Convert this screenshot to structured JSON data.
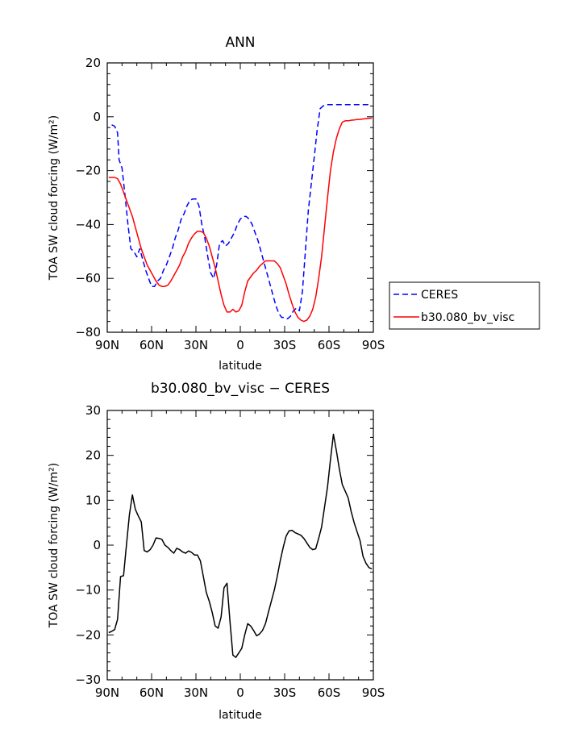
{
  "chart_data": [
    {
      "type": "line",
      "title": "ANN",
      "xlabel": "latitude",
      "ylabel": "TOA SW cloud forcing (W/m²)",
      "xlim": [
        90,
        -90
      ],
      "ylim": [
        -80,
        20
      ],
      "xticks": [
        {
          "value": 90,
          "label": "90N"
        },
        {
          "value": 60,
          "label": "60N"
        },
        {
          "value": 30,
          "label": "30N"
        },
        {
          "value": 0,
          "label": "0"
        },
        {
          "value": -30,
          "label": "30S"
        },
        {
          "value": -60,
          "label": "60S"
        },
        {
          "value": -90,
          "label": "90S"
        }
      ],
      "yticks": [
        -80,
        -60,
        -40,
        -20,
        0,
        20
      ],
      "legend": {
        "placement": "right-outside"
      },
      "series": [
        {
          "name": "CERES",
          "color": "#0000ff",
          "dash": "dashed",
          "x": [
            87,
            85,
            83,
            82,
            80,
            78,
            76,
            74,
            72,
            70,
            68,
            66,
            64,
            62,
            60,
            58,
            56,
            54,
            52,
            50,
            48,
            46,
            44,
            42,
            40,
            38,
            36,
            34,
            32,
            30,
            28,
            26,
            24,
            22,
            20,
            18,
            16,
            14,
            12,
            10,
            8,
            6,
            4,
            2,
            0,
            -2,
            -4,
            -6,
            -8,
            -10,
            -12,
            -14,
            -16,
            -18,
            -20,
            -22,
            -24,
            -26,
            -28,
            -30,
            -32,
            -34,
            -36,
            -38,
            -40,
            -42,
            -44,
            -46,
            -48,
            -50,
            -52,
            -54,
            -56,
            -58,
            -60,
            -62,
            -64,
            -66,
            -68,
            -70,
            -72,
            -74,
            -76,
            -78,
            -80,
            -82,
            -84,
            -86,
            -88
          ],
          "y": [
            -3,
            -3.5,
            -6,
            -16,
            -19,
            -29,
            -40,
            -49,
            -50,
            -52,
            -49,
            -53,
            -57,
            -60,
            -63,
            -63,
            -61,
            -60,
            -57,
            -55,
            -52,
            -49,
            -45,
            -42,
            -38,
            -36,
            -33,
            -31,
            -30.5,
            -30.5,
            -33,
            -40,
            -45,
            -52,
            -58,
            -60,
            -55,
            -47,
            -46,
            -48,
            -47,
            -45,
            -43,
            -40,
            -38,
            -37,
            -37,
            -38,
            -40,
            -43,
            -46,
            -50,
            -54,
            -58,
            -62,
            -66,
            -70,
            -73,
            -74.5,
            -74.5,
            -75,
            -74,
            -72,
            -71,
            -72,
            -65,
            -50,
            -35,
            -25,
            -15,
            -5,
            3,
            4,
            4.5,
            4.5,
            4.5,
            4.5,
            4.5,
            4.5,
            4.5,
            4.5,
            4.5,
            4.5,
            4.5,
            4.5,
            4.5,
            4.5,
            4.5,
            4.5
          ]
        },
        {
          "name": "b30.080_bv_visc",
          "color": "#ff0000",
          "dash": "solid",
          "x": [
            89,
            87,
            85,
            83,
            81,
            79,
            77,
            75,
            73,
            71,
            69,
            67,
            65,
            63,
            61,
            59,
            57,
            55,
            53,
            51,
            49,
            47,
            45,
            43,
            41,
            39,
            37,
            35,
            33,
            31,
            29,
            27,
            25,
            23,
            21,
            19,
            17,
            15,
            13,
            11,
            9,
            7,
            5,
            3,
            1,
            -1,
            -3,
            -5,
            -7,
            -9,
            -11,
            -13,
            -15,
            -17,
            -19,
            -21,
            -23,
            -25,
            -27,
            -29,
            -31,
            -33,
            -35,
            -37,
            -39,
            -41,
            -43,
            -45,
            -47,
            -49,
            -51,
            -53,
            -55,
            -57,
            -59,
            -61,
            -63,
            -65,
            -67,
            -69,
            -71,
            -73,
            -75,
            -77,
            -79,
            -81,
            -83,
            -85,
            -87,
            -89
          ],
          "y": [
            -22.5,
            -22.5,
            -22.5,
            -23,
            -25,
            -28,
            -31,
            -34,
            -37,
            -41,
            -45,
            -49,
            -52,
            -55,
            -57,
            -59,
            -61,
            -62.5,
            -63,
            -63,
            -62.5,
            -61,
            -59,
            -57,
            -55,
            -52,
            -50,
            -47,
            -45,
            -43.5,
            -42.5,
            -42.5,
            -43,
            -45,
            -48,
            -52,
            -56,
            -61,
            -66,
            -70,
            -72.5,
            -72.5,
            -71.5,
            -72.5,
            -72,
            -70,
            -65,
            -61,
            -59.5,
            -58,
            -57,
            -55.5,
            -54.5,
            -53.5,
            -53.5,
            -53.5,
            -53.5,
            -54.5,
            -56,
            -59,
            -62,
            -66,
            -69.5,
            -72.5,
            -74.5,
            -75.5,
            -76,
            -75.5,
            -74,
            -71.5,
            -67,
            -60,
            -52,
            -41,
            -30,
            -20,
            -13,
            -8,
            -4.5,
            -2,
            -1.5,
            -1.5,
            -1.3,
            -1.2,
            -1,
            -1,
            -0.8,
            -0.7,
            -0.6,
            -0.5
          ]
        }
      ]
    },
    {
      "type": "line",
      "title": "b30.080_bv_visc  −  CERES",
      "xlabel": "latitude",
      "ylabel": "TOA SW cloud forcing (W/m²)",
      "xlim": [
        90,
        -90
      ],
      "ylim": [
        -30,
        30
      ],
      "xticks": [
        {
          "value": 90,
          "label": "90N"
        },
        {
          "value": 60,
          "label": "60N"
        },
        {
          "value": 30,
          "label": "30N"
        },
        {
          "value": 0,
          "label": "0"
        },
        {
          "value": -30,
          "label": "30S"
        },
        {
          "value": -60,
          "label": "60S"
        },
        {
          "value": -90,
          "label": "90S"
        }
      ],
      "yticks": [
        -30,
        -20,
        -10,
        0,
        10,
        20,
        30
      ],
      "series": [
        {
          "name": "",
          "color": "#000000",
          "dash": "solid",
          "x": [
            89,
            87,
            85,
            83,
            81,
            79,
            77,
            75,
            73,
            71,
            69,
            67,
            65,
            63,
            61,
            59,
            57,
            55,
            53,
            51,
            49,
            47,
            45,
            43,
            41,
            39,
            37,
            35,
            33,
            31,
            29,
            27,
            25,
            23,
            21,
            19,
            17,
            15,
            13,
            11,
            9,
            7,
            5,
            3,
            1,
            -1,
            -3,
            -5,
            -7,
            -9,
            -11,
            -13,
            -15,
            -17,
            -19,
            -21,
            -23,
            -25,
            -27,
            -29,
            -31,
            -33,
            -35,
            -37,
            -39,
            -41,
            -43,
            -45,
            -47,
            -49,
            -51,
            -53,
            -55,
            -57,
            -59,
            -61,
            -63,
            -65,
            -67,
            -69,
            -71,
            -73,
            -75,
            -77,
            -79,
            -81,
            -83,
            -85,
            -87,
            -89
          ],
          "y": [
            -19.5,
            -19.2,
            -18.8,
            -16.5,
            -7,
            -6.8,
            0,
            6.8,
            11.2,
            8,
            6.5,
            5.2,
            -1.2,
            -1.5,
            -1,
            0,
            1.6,
            1.5,
            1.3,
            0,
            -0.5,
            -1.2,
            -1.8,
            -0.7,
            -1,
            -1.5,
            -1.8,
            -1.3,
            -1.6,
            -2.2,
            -2.2,
            -3.5,
            -7,
            -10.5,
            -12.5,
            -15,
            -18,
            -18.5,
            -16,
            -9.5,
            -8.5,
            -17,
            -24.5,
            -25,
            -24,
            -23,
            -20,
            -17.5,
            -18,
            -19,
            -20.2,
            -19.8,
            -19,
            -17.5,
            -15,
            -12.5,
            -10,
            -7,
            -3.5,
            -0.5,
            2,
            3.2,
            3.3,
            2.8,
            2.5,
            2.2,
            1.5,
            0.5,
            -0.5,
            -1,
            -0.8,
            1.5,
            4,
            8.5,
            13,
            19,
            24.7,
            21,
            17,
            13.5,
            12,
            10.5,
            7.5,
            5,
            3,
            1,
            -2.5,
            -4,
            -5,
            -5.3
          ]
        }
      ]
    }
  ]
}
